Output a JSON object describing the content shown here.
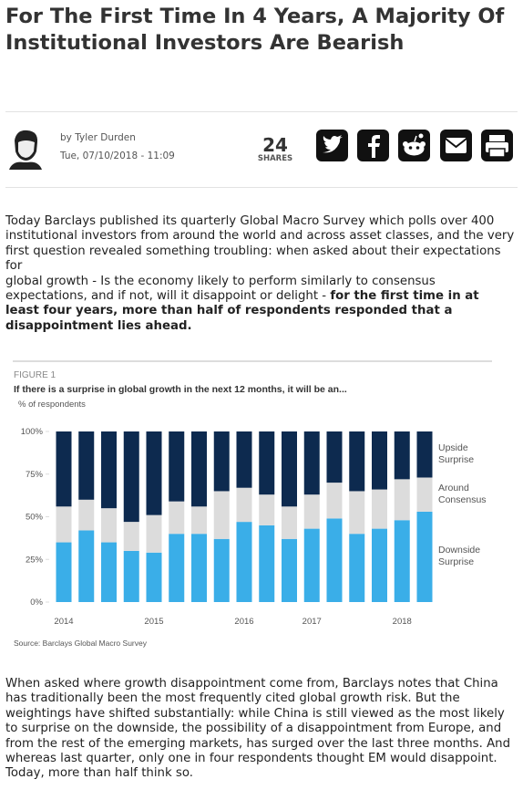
{
  "header": {
    "title": "For The First Time In 4 Years, A Majority Of Institutional Investors Are Bearish",
    "author": "by Tyler Durden",
    "date": "Tue, 07/10/2018 - 11:09",
    "shares": "24",
    "shares_label": "SHARES"
  },
  "body": {
    "p1_a": "Today Barclays published its quarterly Global Macro Survey which polls over 400 institutional investors from around the world and across asset classes, and the very first question revealed something troubling: when asked about their expectations for",
    "p1_b": "global growth - Is the economy likely to perform similarly to consensus expectations, and if not, will it disappoint or delight - ",
    "p1_bold": "for the first time in at least four years, more than half of respondents responded that a disappointment lies ahead.",
    "p2": "When asked where growth disappointment come from, Barclays notes that China has traditionally been the most frequently cited global growth risk. But the weightings have shifted substantially: while China is still viewed as the most likely to surprise on the downside, the possibility of a disappointment from Europe, and from the rest of the emerging markets, has surged over the last three months. And whereas last quarter, only one in four respondents thought EM would disappoint. Today, more than half think so."
  },
  "figure": {
    "type": "bar",
    "stacked": true,
    "label": "FIGURE 1",
    "title": "If there is a surprise in global growth in the next 12 months, it will be an...",
    "subtitle": "% of respondents",
    "source": "Source: Barclays Global Macro Survey",
    "categories": [
      "2014",
      null,
      null,
      null,
      "2015",
      null,
      null,
      null,
      "2016",
      null,
      null,
      "2017",
      null,
      null,
      null,
      "2018",
      null
    ],
    "series": [
      {
        "name": "Downside Surprise",
        "color": "#3aaee8",
        "values": [
          35,
          42,
          35,
          30,
          29,
          40,
          40,
          37,
          47,
          45,
          37,
          43,
          49,
          40,
          43,
          48,
          53
        ]
      },
      {
        "name": "Around Consensus",
        "color": "#dcdcdc",
        "values": [
          21,
          18,
          20,
          17,
          22,
          19,
          16,
          28,
          20,
          18,
          19,
          20,
          21,
          25,
          23,
          24,
          20
        ]
      },
      {
        "name": "Upside Surprise",
        "color": "#0d2a4f",
        "values": [
          44,
          40,
          45,
          53,
          49,
          41,
          44,
          35,
          33,
          37,
          44,
          37,
          30,
          35,
          34,
          28,
          27
        ]
      }
    ],
    "ylim": [
      0,
      100
    ],
    "yticks": [
      {
        "value": 0,
        "label": "0%"
      },
      {
        "value": 25,
        "label": "25%"
      },
      {
        "value": 50,
        "label": "50%"
      },
      {
        "value": 75,
        "label": "75%"
      },
      {
        "value": 100,
        "label": "100%"
      }
    ],
    "grid": false
  }
}
